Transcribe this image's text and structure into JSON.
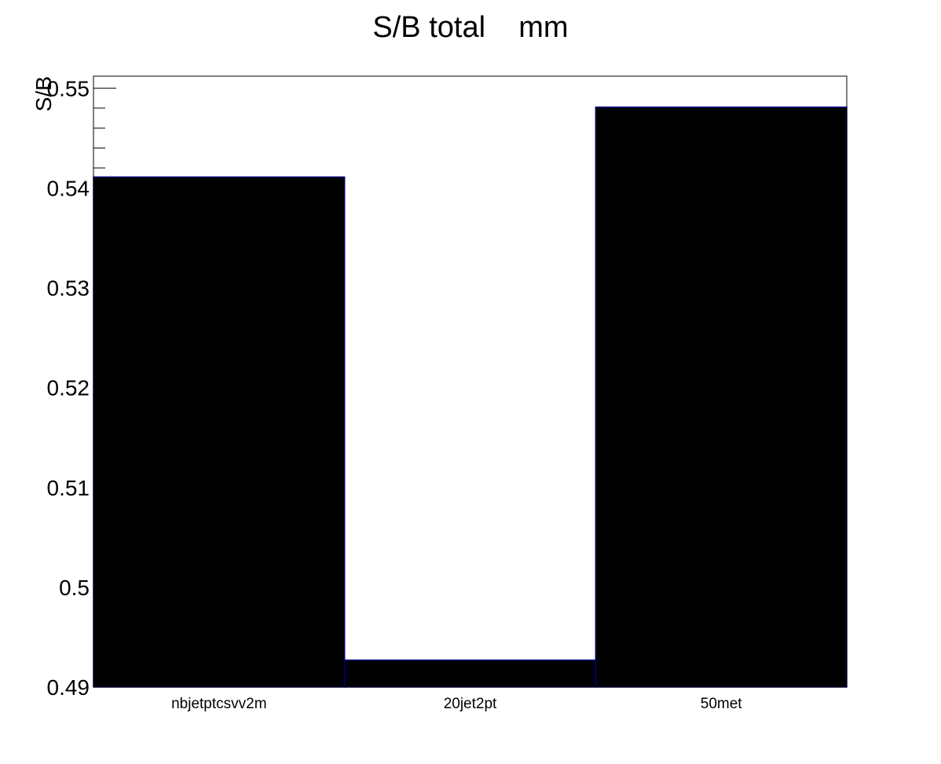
{
  "chart_data": {
    "type": "bar",
    "title": "S/B total    mm",
    "ylabel": "S/B",
    "xlabel": "",
    "categories": [
      "nbjetptcsvv2m",
      "20jet2pt",
      "50met"
    ],
    "values": [
      0.5411,
      0.4927,
      0.5481
    ],
    "ylim": [
      0.49,
      0.5512
    ],
    "yticks": [
      0.49,
      0.5,
      0.51,
      0.52,
      0.53,
      0.54,
      0.55
    ],
    "ytick_labels": [
      "0.49",
      "0.5",
      "0.51",
      "0.52",
      "0.53",
      "0.54",
      "0.55"
    ],
    "grid": false,
    "bar_color": "#000000",
    "bar_edge_color": "#000080"
  }
}
